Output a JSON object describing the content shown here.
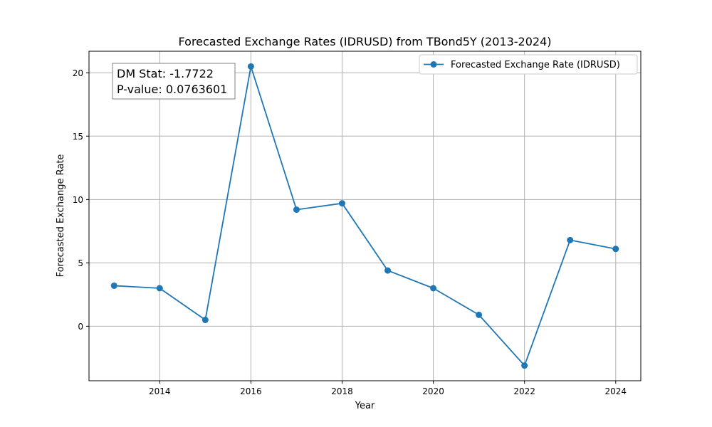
{
  "chart_data": {
    "type": "line",
    "title": "Forecasted Exchange Rates (IDRUSD) from TBond5Y (2013-2024)",
    "xlabel": "Year",
    "ylabel": "Forecasted Exchange Rate",
    "xlim": [
      2012.45,
      2024.55
    ],
    "ylim": [
      -4.3,
      21.7
    ],
    "xticks": [
      2014,
      2016,
      2018,
      2020,
      2022,
      2024
    ],
    "yticks": [
      0,
      5,
      10,
      15,
      20
    ],
    "grid": true,
    "legend_position": "top-right",
    "annotation": {
      "line1": "DM Stat: -1.7722",
      "line2": "P-value: 0.0763601"
    },
    "series": [
      {
        "name": "Forecasted Exchange Rate (IDRUSD)",
        "color": "#1f77b4",
        "marker": "circle",
        "x": [
          2013,
          2014,
          2015,
          2016,
          2017,
          2018,
          2019,
          2020,
          2021,
          2022,
          2023,
          2024
        ],
        "y": [
          3.2,
          3.0,
          0.5,
          20.5,
          9.2,
          9.7,
          4.4,
          3.0,
          0.9,
          -3.1,
          6.8,
          6.1
        ]
      }
    ]
  }
}
